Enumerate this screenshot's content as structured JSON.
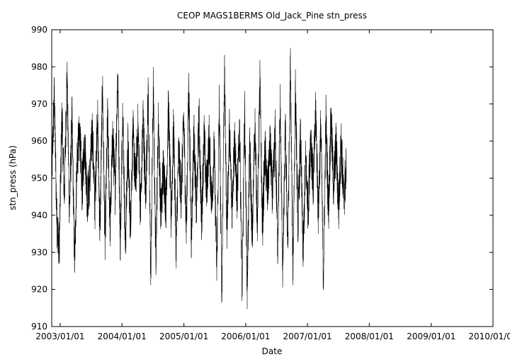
{
  "chart_data": {
    "type": "line",
    "title": "CEOP MAGS1BERMS Old_Jack_Pine  stn_press",
    "xlabel": "Date",
    "ylabel": "stn_press (hPa)",
    "ylim": [
      910,
      990
    ],
    "xlim": [
      "2002-11-12",
      "2010-01-01"
    ],
    "x_ticks": [
      "2003/01/01",
      "2004/01/01",
      "2005/01/01",
      "2006/01/01",
      "2007/01/01",
      "2008/01/01",
      "2009/01/01",
      "2010/01/01"
    ],
    "y_ticks": [
      910,
      920,
      930,
      940,
      950,
      960,
      970,
      980,
      990
    ],
    "grid": false,
    "line_color": "#000000",
    "series": [
      {
        "sampling": "every 15 days",
        "start": "2002-11-12",
        "values": [
          950.2,
          972.8,
          938.6,
          931.0,
          967.4,
          945.1,
          978.1,
          940.5,
          966.5,
          927.0,
          955.3,
          962.0,
          946.8,
          960.5,
          944.0,
          949.6,
          963.2,
          941.9,
          968.0,
          935.2,
          975.0,
          932.5,
          966.0,
          936.8,
          961.3,
          947.0,
          979.2,
          931.7,
          969.8,
          930.5,
          958.8,
          937.4,
          962.5,
          948.1,
          964.0,
          941.0,
          967.0,
          944.6,
          973.2,
          924.0,
          974.0,
          928.3,
          965.8,
          939.5,
          953.7,
          942.2,
          969.9,
          939.3,
          963.5,
          931.2,
          957.2,
          945.0,
          966.0,
          935.5,
          975.3,
          933.5,
          962.4,
          940.8,
          967.1,
          938.0,
          961.5,
          946.2,
          960.8,
          943.4,
          957.9,
          925.5,
          969.5,
          919.5,
          979.5,
          936.2,
          963.0,
          941.8,
          961.0,
          944.4,
          963.9,
          919.4,
          968.5,
          920.6,
          959.0,
          933.2,
          965.2,
          938.1,
          976.4,
          936.5,
          957.4,
          945.5,
          959.1,
          944.9,
          961.8,
          932.0,
          969.4,
          924.4,
          963.3,
          931.5,
          980.2,
          925.5,
          973.5,
          936.9,
          961.4,
          929.6,
          955.0,
          941.3,
          962.2,
          947.5,
          968.6,
          940.1,
          964.7,
          922.8,
          966.2,
          940.9,
          966.5,
          947.6,
          959.2,
          941.5,
          960.0,
          944.0,
          953.2
        ]
      }
    ]
  }
}
